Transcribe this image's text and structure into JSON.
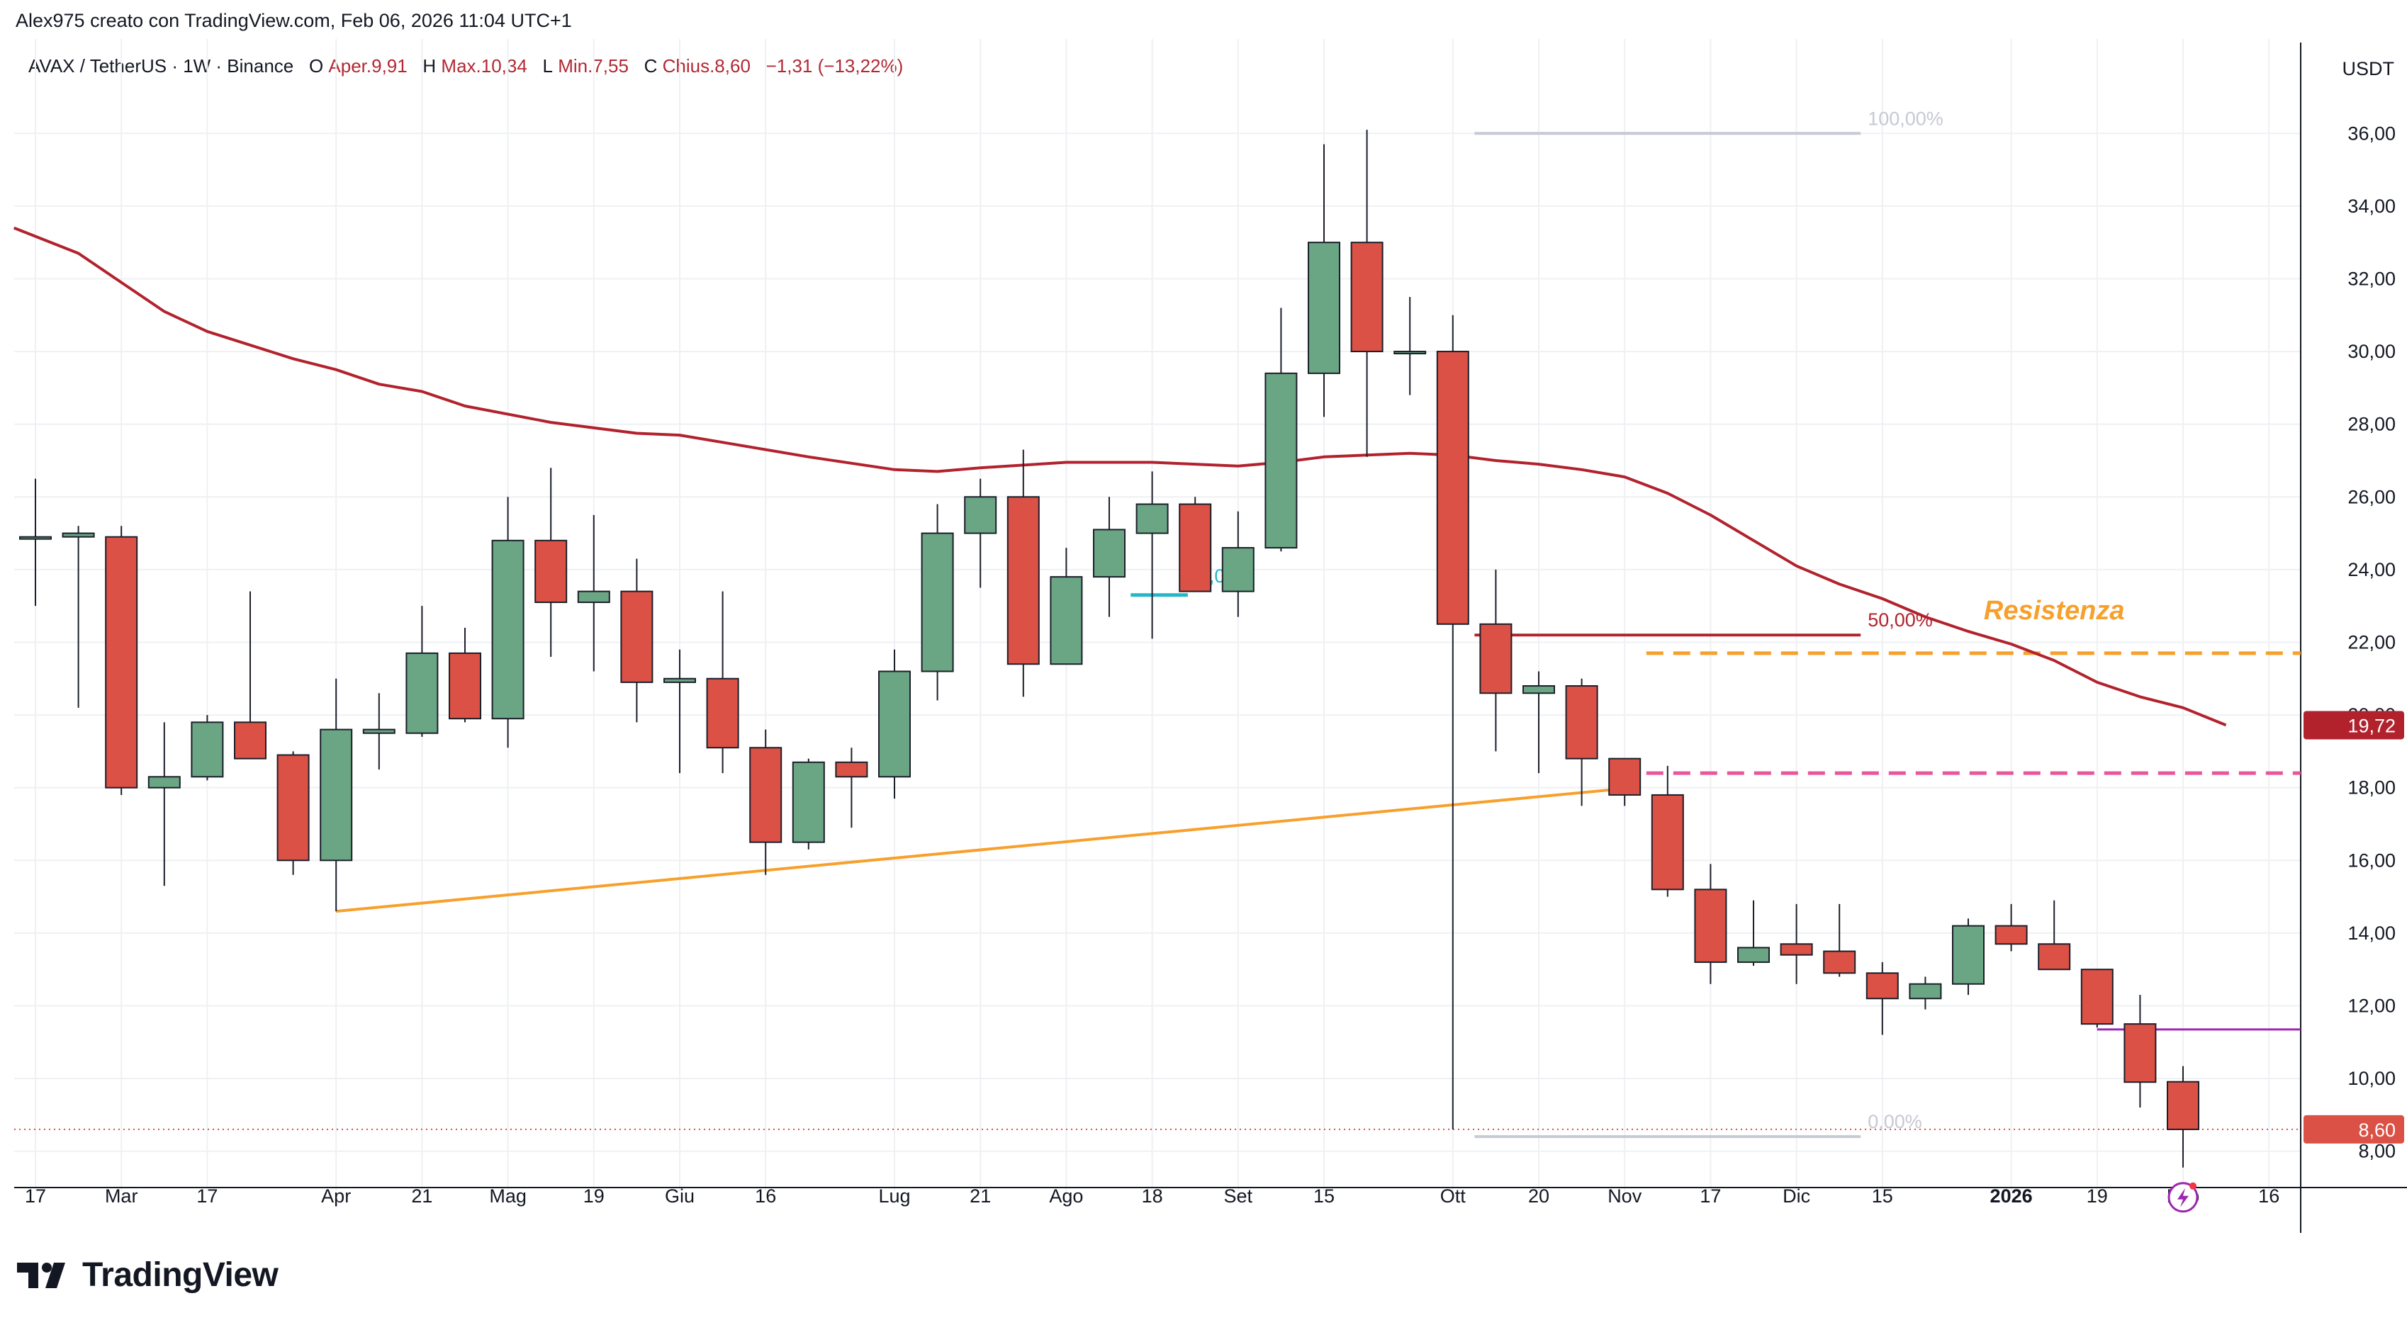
{
  "header": {
    "attribution": "Alex975 creato con TradingView.com, Feb 06, 2026 11:04 UTC+1"
  },
  "legend": {
    "symbol": "AVAX / TetherUS · 1W · Binance",
    "open_label": "O",
    "open_value": "Aper.9,91",
    "high_label": "H",
    "high_value": "Max.10,34",
    "low_label": "L",
    "low_value": "Min.7,55",
    "close_label": "C",
    "close_value": "Chius.8,60",
    "change": "−1,31 (−13,22%)"
  },
  "footer": {
    "brand": "TradingView"
  },
  "colors": {
    "up": "#6aa584",
    "down": "#db5145",
    "ma": "#b2222d",
    "trendline": "#f7a02b",
    "resistance": "#f7a02b",
    "pink_level": "#e8569b",
    "purple_level": "#9c27b0",
    "fib_grey": "#c7c9d3",
    "fib_cyan": "#26b6c9",
    "grid": "#eef0f3"
  },
  "chart_data": {
    "type": "candlestick",
    "symbol": "AVAX / TetherUS",
    "interval": "1W",
    "y_unit": "USDT",
    "ylim": [
      7.0,
      38.5
    ],
    "y_ticks": [
      "8,00",
      "10,00",
      "12,00",
      "14,00",
      "16,00",
      "18,00",
      "20,00",
      "22,00",
      "24,00",
      "26,00",
      "28,00",
      "30,00",
      "32,00",
      "34,00",
      "36,00"
    ],
    "x_ticks": [
      {
        "label": "17",
        "i": 0
      },
      {
        "label": "Mar",
        "i": 2
      },
      {
        "label": "17",
        "i": 4
      },
      {
        "label": "Apr",
        "i": 7
      },
      {
        "label": "21",
        "i": 9
      },
      {
        "label": "Mag",
        "i": 11
      },
      {
        "label": "19",
        "i": 13
      },
      {
        "label": "Giu",
        "i": 15
      },
      {
        "label": "16",
        "i": 17
      },
      {
        "label": "Lug",
        "i": 20
      },
      {
        "label": "21",
        "i": 22
      },
      {
        "label": "Ago",
        "i": 24
      },
      {
        "label": "18",
        "i": 26
      },
      {
        "label": "Set",
        "i": 28
      },
      {
        "label": "15",
        "i": 30
      },
      {
        "label": "Ott",
        "i": 33
      },
      {
        "label": "20",
        "i": 35
      },
      {
        "label": "Nov",
        "i": 37
      },
      {
        "label": "17",
        "i": 39
      },
      {
        "label": "Dic",
        "i": 41
      },
      {
        "label": "15",
        "i": 43
      },
      {
        "label": "2026",
        "i": 46,
        "bold": true
      },
      {
        "label": "19",
        "i": 48
      },
      {
        "label": "Feb",
        "i": 50
      },
      {
        "label": "16",
        "i": 52
      }
    ],
    "candles": [
      {
        "o": 24.9,
        "h": 26.5,
        "l": 23.0,
        "c": 24.9
      },
      {
        "o": 24.9,
        "h": 25.2,
        "l": 20.2,
        "c": 25.0
      },
      {
        "o": 24.9,
        "h": 25.2,
        "l": 17.8,
        "c": 18.0
      },
      {
        "o": 18.0,
        "h": 19.8,
        "l": 15.3,
        "c": 18.3
      },
      {
        "o": 18.3,
        "h": 20.0,
        "l": 18.2,
        "c": 19.8
      },
      {
        "o": 19.8,
        "h": 23.4,
        "l": 18.8,
        "c": 18.8
      },
      {
        "o": 18.9,
        "h": 19.0,
        "l": 15.6,
        "c": 16.0
      },
      {
        "o": 16.0,
        "h": 21.0,
        "l": 14.6,
        "c": 19.6
      },
      {
        "o": 19.5,
        "h": 20.6,
        "l": 18.5,
        "c": 19.6
      },
      {
        "o": 19.5,
        "h": 23.0,
        "l": 19.4,
        "c": 21.7
      },
      {
        "o": 21.7,
        "h": 22.4,
        "l": 19.8,
        "c": 19.9
      },
      {
        "o": 19.9,
        "h": 26.0,
        "l": 19.1,
        "c": 24.8
      },
      {
        "o": 24.8,
        "h": 26.8,
        "l": 21.6,
        "c": 23.1
      },
      {
        "o": 23.1,
        "h": 25.5,
        "l": 21.2,
        "c": 23.4
      },
      {
        "o": 23.4,
        "h": 24.3,
        "l": 19.8,
        "c": 20.9
      },
      {
        "o": 20.9,
        "h": 21.8,
        "l": 18.4,
        "c": 21.0
      },
      {
        "o": 21.0,
        "h": 23.4,
        "l": 18.4,
        "c": 19.1
      },
      {
        "o": 19.1,
        "h": 19.6,
        "l": 15.6,
        "c": 16.5
      },
      {
        "o": 16.5,
        "h": 18.8,
        "l": 16.3,
        "c": 18.7
      },
      {
        "o": 18.7,
        "h": 19.1,
        "l": 16.9,
        "c": 18.3
      },
      {
        "o": 18.3,
        "h": 21.8,
        "l": 17.7,
        "c": 21.2
      },
      {
        "o": 21.2,
        "h": 25.8,
        "l": 20.4,
        "c": 25.0
      },
      {
        "o": 25.0,
        "h": 26.5,
        "l": 23.5,
        "c": 26.0
      },
      {
        "o": 26.0,
        "h": 27.3,
        "l": 20.5,
        "c": 21.4
      },
      {
        "o": 21.4,
        "h": 24.6,
        "l": 21.4,
        "c": 23.8
      },
      {
        "o": 23.8,
        "h": 26.0,
        "l": 22.7,
        "c": 25.1
      },
      {
        "o": 25.0,
        "h": 26.7,
        "l": 22.1,
        "c": 25.8
      },
      {
        "o": 25.8,
        "h": 26.0,
        "l": 23.4,
        "c": 23.4
      },
      {
        "o": 23.4,
        "h": 25.6,
        "l": 22.7,
        "c": 24.6
      },
      {
        "o": 24.6,
        "h": 31.2,
        "l": 24.5,
        "c": 29.4
      },
      {
        "o": 29.4,
        "h": 35.7,
        "l": 28.2,
        "c": 33.0
      },
      {
        "o": 33.0,
        "h": 36.1,
        "l": 27.1,
        "c": 30.0
      },
      {
        "o": 30.0,
        "h": 31.5,
        "l": 28.8,
        "c": 30.0
      },
      {
        "o": 30.0,
        "h": 31.0,
        "l": 8.6,
        "c": 22.5
      },
      {
        "o": 22.5,
        "h": 24.0,
        "l": 19.0,
        "c": 20.6
      },
      {
        "o": 20.6,
        "h": 21.2,
        "l": 18.4,
        "c": 20.8
      },
      {
        "o": 20.8,
        "h": 21.0,
        "l": 17.5,
        "c": 18.8
      },
      {
        "o": 18.8,
        "h": 18.8,
        "l": 17.5,
        "c": 17.8
      },
      {
        "o": 17.8,
        "h": 18.6,
        "l": 15.0,
        "c": 15.2
      },
      {
        "o": 15.2,
        "h": 15.9,
        "l": 12.6,
        "c": 13.2
      },
      {
        "o": 13.2,
        "h": 14.9,
        "l": 13.1,
        "c": 13.6
      },
      {
        "o": 13.7,
        "h": 14.8,
        "l": 12.6,
        "c": 13.4
      },
      {
        "o": 13.5,
        "h": 14.8,
        "l": 12.8,
        "c": 12.9
      },
      {
        "o": 12.9,
        "h": 13.2,
        "l": 11.2,
        "c": 12.2
      },
      {
        "o": 12.2,
        "h": 12.8,
        "l": 11.9,
        "c": 12.6
      },
      {
        "o": 12.6,
        "h": 14.4,
        "l": 12.3,
        "c": 14.2
      },
      {
        "o": 14.2,
        "h": 14.8,
        "l": 13.5,
        "c": 13.7
      },
      {
        "o": 13.7,
        "h": 14.9,
        "l": 13.0,
        "c": 13.0
      },
      {
        "o": 13.0,
        "h": 13.0,
        "l": 11.4,
        "c": 11.5
      },
      {
        "o": 11.5,
        "h": 12.3,
        "l": 9.2,
        "c": 9.9
      },
      {
        "o": 9.91,
        "h": 10.34,
        "l": 7.55,
        "c": 8.6
      }
    ],
    "moving_average": [
      {
        "i": -0.5,
        "v": 33.4
      },
      {
        "i": 1,
        "v": 32.7
      },
      {
        "i": 2,
        "v": 31.9
      },
      {
        "i": 3,
        "v": 31.1
      },
      {
        "i": 4,
        "v": 30.55
      },
      {
        "i": 6,
        "v": 29.8
      },
      {
        "i": 7,
        "v": 29.5
      },
      {
        "i": 8,
        "v": 29.1
      },
      {
        "i": 9,
        "v": 28.9
      },
      {
        "i": 10,
        "v": 28.5
      },
      {
        "i": 12,
        "v": 28.05
      },
      {
        "i": 14,
        "v": 27.75
      },
      {
        "i": 15,
        "v": 27.7
      },
      {
        "i": 16,
        "v": 27.5
      },
      {
        "i": 18,
        "v": 27.1
      },
      {
        "i": 20,
        "v": 26.75
      },
      {
        "i": 21,
        "v": 26.7
      },
      {
        "i": 22,
        "v": 26.8
      },
      {
        "i": 24,
        "v": 26.95
      },
      {
        "i": 26,
        "v": 26.95
      },
      {
        "i": 28,
        "v": 26.85
      },
      {
        "i": 29,
        "v": 26.95
      },
      {
        "i": 30,
        "v": 27.1
      },
      {
        "i": 31,
        "v": 27.15
      },
      {
        "i": 32,
        "v": 27.2
      },
      {
        "i": 33,
        "v": 27.15
      },
      {
        "i": 34,
        "v": 27.0
      },
      {
        "i": 35,
        "v": 26.9
      },
      {
        "i": 36,
        "v": 26.75
      },
      {
        "i": 37,
        "v": 26.55
      },
      {
        "i": 38,
        "v": 26.1
      },
      {
        "i": 39,
        "v": 25.5
      },
      {
        "i": 40,
        "v": 24.8
      },
      {
        "i": 41,
        "v": 24.1
      },
      {
        "i": 42,
        "v": 23.6
      },
      {
        "i": 43,
        "v": 23.2
      },
      {
        "i": 44,
        "v": 22.7
      },
      {
        "i": 45,
        "v": 22.3
      },
      {
        "i": 46,
        "v": 21.95
      },
      {
        "i": 47,
        "v": 21.5
      },
      {
        "i": 48,
        "v": 20.9
      },
      {
        "i": 49,
        "v": 20.5
      },
      {
        "i": 50,
        "v": 20.2
      },
      {
        "i": 51,
        "v": 19.72
      }
    ],
    "trendline": {
      "i1": 7,
      "v1": 14.6,
      "i2": 37.2,
      "v2": 18.0
    },
    "fib_levels": [
      {
        "label": "100,00%",
        "value": 36.0,
        "i1": 34,
        "i2": 42
      },
      {
        "label": "50,00%",
        "value": 22.2,
        "i1": 34,
        "i2": 42
      },
      {
        "label": "0,00%",
        "value": 8.4,
        "i1": 34,
        "i2": 42
      }
    ],
    "fib_other": {
      "label": "50,00%",
      "value": 23.3,
      "i1": 25.5,
      "i2": 26.5
    },
    "resistance": {
      "label": "Resistenza",
      "value": 21.7,
      "i1": 38,
      "i2": 53.7
    },
    "pink_level": {
      "value": 18.4,
      "i1": 38,
      "i2": 53.7
    },
    "purple_level": {
      "value": 11.35,
      "i1": 48,
      "i2": 53.7
    },
    "price_labels": [
      {
        "value": 19.72,
        "text": "19,72",
        "color": "#b2222d"
      },
      {
        "value": 8.6,
        "text": "8,60",
        "color": "#db5145"
      }
    ]
  }
}
